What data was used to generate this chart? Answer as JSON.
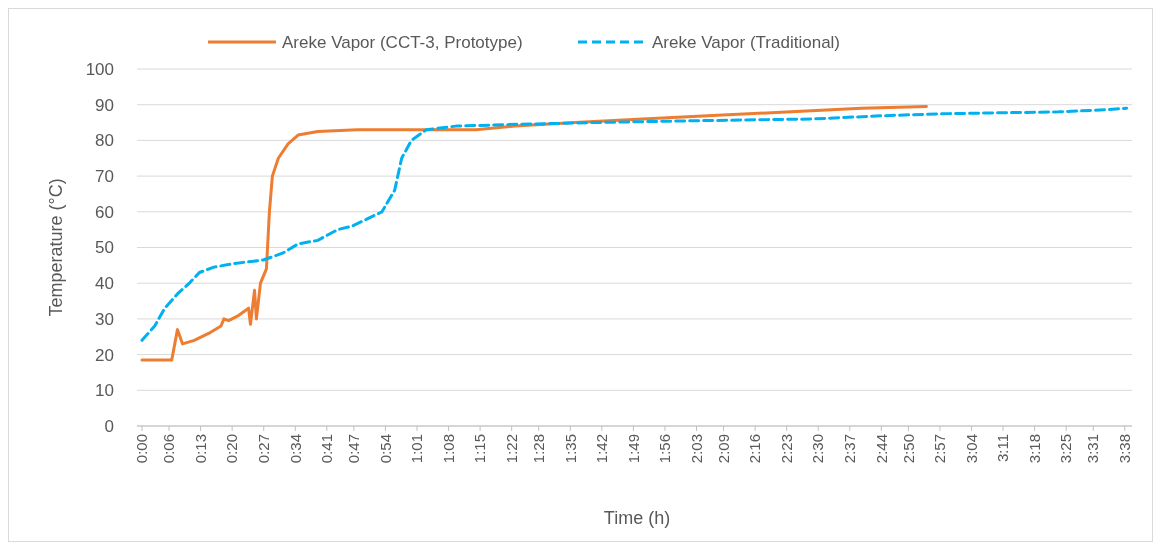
{
  "chart_data": {
    "type": "line",
    "xlabel": "Time (h)",
    "ylabel": "Temperature (°C)",
    "xlim": [
      0,
      3.66
    ],
    "ylim": [
      0,
      100
    ],
    "yticks": [
      0,
      10,
      20,
      30,
      40,
      50,
      60,
      70,
      80,
      90,
      100
    ],
    "xticks": [
      {
        "value": 0,
        "label": "0:00"
      },
      {
        "value": 0.1,
        "label": "0:06"
      },
      {
        "value": 0.2167,
        "label": "0:13"
      },
      {
        "value": 0.3333,
        "label": "0:20"
      },
      {
        "value": 0.45,
        "label": "0:27"
      },
      {
        "value": 0.5667,
        "label": "0:34"
      },
      {
        "value": 0.6833,
        "label": "0:41"
      },
      {
        "value": 0.7833,
        "label": "0:47"
      },
      {
        "value": 0.9,
        "label": "0:54"
      },
      {
        "value": 1.0167,
        "label": "1:01"
      },
      {
        "value": 1.1333,
        "label": "1:08"
      },
      {
        "value": 1.25,
        "label": "1:15"
      },
      {
        "value": 1.3667,
        "label": "1:22"
      },
      {
        "value": 1.4667,
        "label": "1:28"
      },
      {
        "value": 1.5833,
        "label": "1:35"
      },
      {
        "value": 1.7,
        "label": "1:42"
      },
      {
        "value": 1.8167,
        "label": "1:49"
      },
      {
        "value": 1.9333,
        "label": "1:56"
      },
      {
        "value": 2.05,
        "label": "2:03"
      },
      {
        "value": 2.15,
        "label": "2:09"
      },
      {
        "value": 2.2667,
        "label": "2:16"
      },
      {
        "value": 2.3833,
        "label": "2:23"
      },
      {
        "value": 2.5,
        "label": "2:30"
      },
      {
        "value": 2.6167,
        "label": "2:37"
      },
      {
        "value": 2.7333,
        "label": "2:44"
      },
      {
        "value": 2.8333,
        "label": "2:50"
      },
      {
        "value": 2.95,
        "label": "2:57"
      },
      {
        "value": 3.0667,
        "label": "3:04"
      },
      {
        "value": 3.1833,
        "label": "3:11"
      },
      {
        "value": 3.3,
        "label": "3:18"
      },
      {
        "value": 3.4167,
        "label": "3:25"
      },
      {
        "value": 3.5167,
        "label": "3:31"
      },
      {
        "value": 3.6333,
        "label": "3:38"
      }
    ],
    "grid": "y",
    "legend": "top",
    "series": [
      {
        "name": "Areke Vapor (CCT-3, Prototype)",
        "color": "#ed7d31",
        "line_style": "solid",
        "x": [
          0,
          0.11,
          0.131,
          0.15,
          0.193,
          0.248,
          0.292,
          0.303,
          0.32,
          0.358,
          0.394,
          0.401,
          0.416,
          0.423,
          0.438,
          0.46,
          0.471,
          0.482,
          0.504,
          0.54,
          0.577,
          0.65,
          0.796,
          1.234,
          1.38,
          1.6,
          1.85,
          2.11,
          2.4,
          2.66,
          2.9
        ],
        "values": [
          18.5,
          18.5,
          27,
          23,
          24,
          26,
          28,
          30,
          29.5,
          31,
          33,
          28.5,
          38,
          30,
          40,
          44,
          60,
          70,
          75,
          79,
          81.5,
          82.5,
          83,
          83,
          84,
          85,
          86,
          87,
          88,
          89,
          89.5
        ]
      },
      {
        "name": "Areke Vapor (Traditional)",
        "color": "#00b0f0",
        "line_style": "dashed",
        "x": [
          0,
          0.047,
          0.084,
          0.131,
          0.175,
          0.212,
          0.266,
          0.339,
          0.449,
          0.522,
          0.577,
          0.65,
          0.723,
          0.777,
          0.887,
          0.934,
          0.96,
          0.996,
          1.051,
          1.161,
          1.39,
          1.672,
          2.037,
          2.475,
          2.767,
          2.986,
          3.39,
          3.54,
          3.64
        ],
        "values": [
          24,
          28,
          33,
          37,
          40,
          43,
          44.5,
          45.5,
          46.5,
          48.5,
          51,
          52,
          55,
          56,
          60,
          66,
          75,
          80,
          83,
          84,
          84.5,
          85,
          85.5,
          86,
          87,
          87.5,
          88,
          88.5,
          89
        ]
      }
    ]
  }
}
